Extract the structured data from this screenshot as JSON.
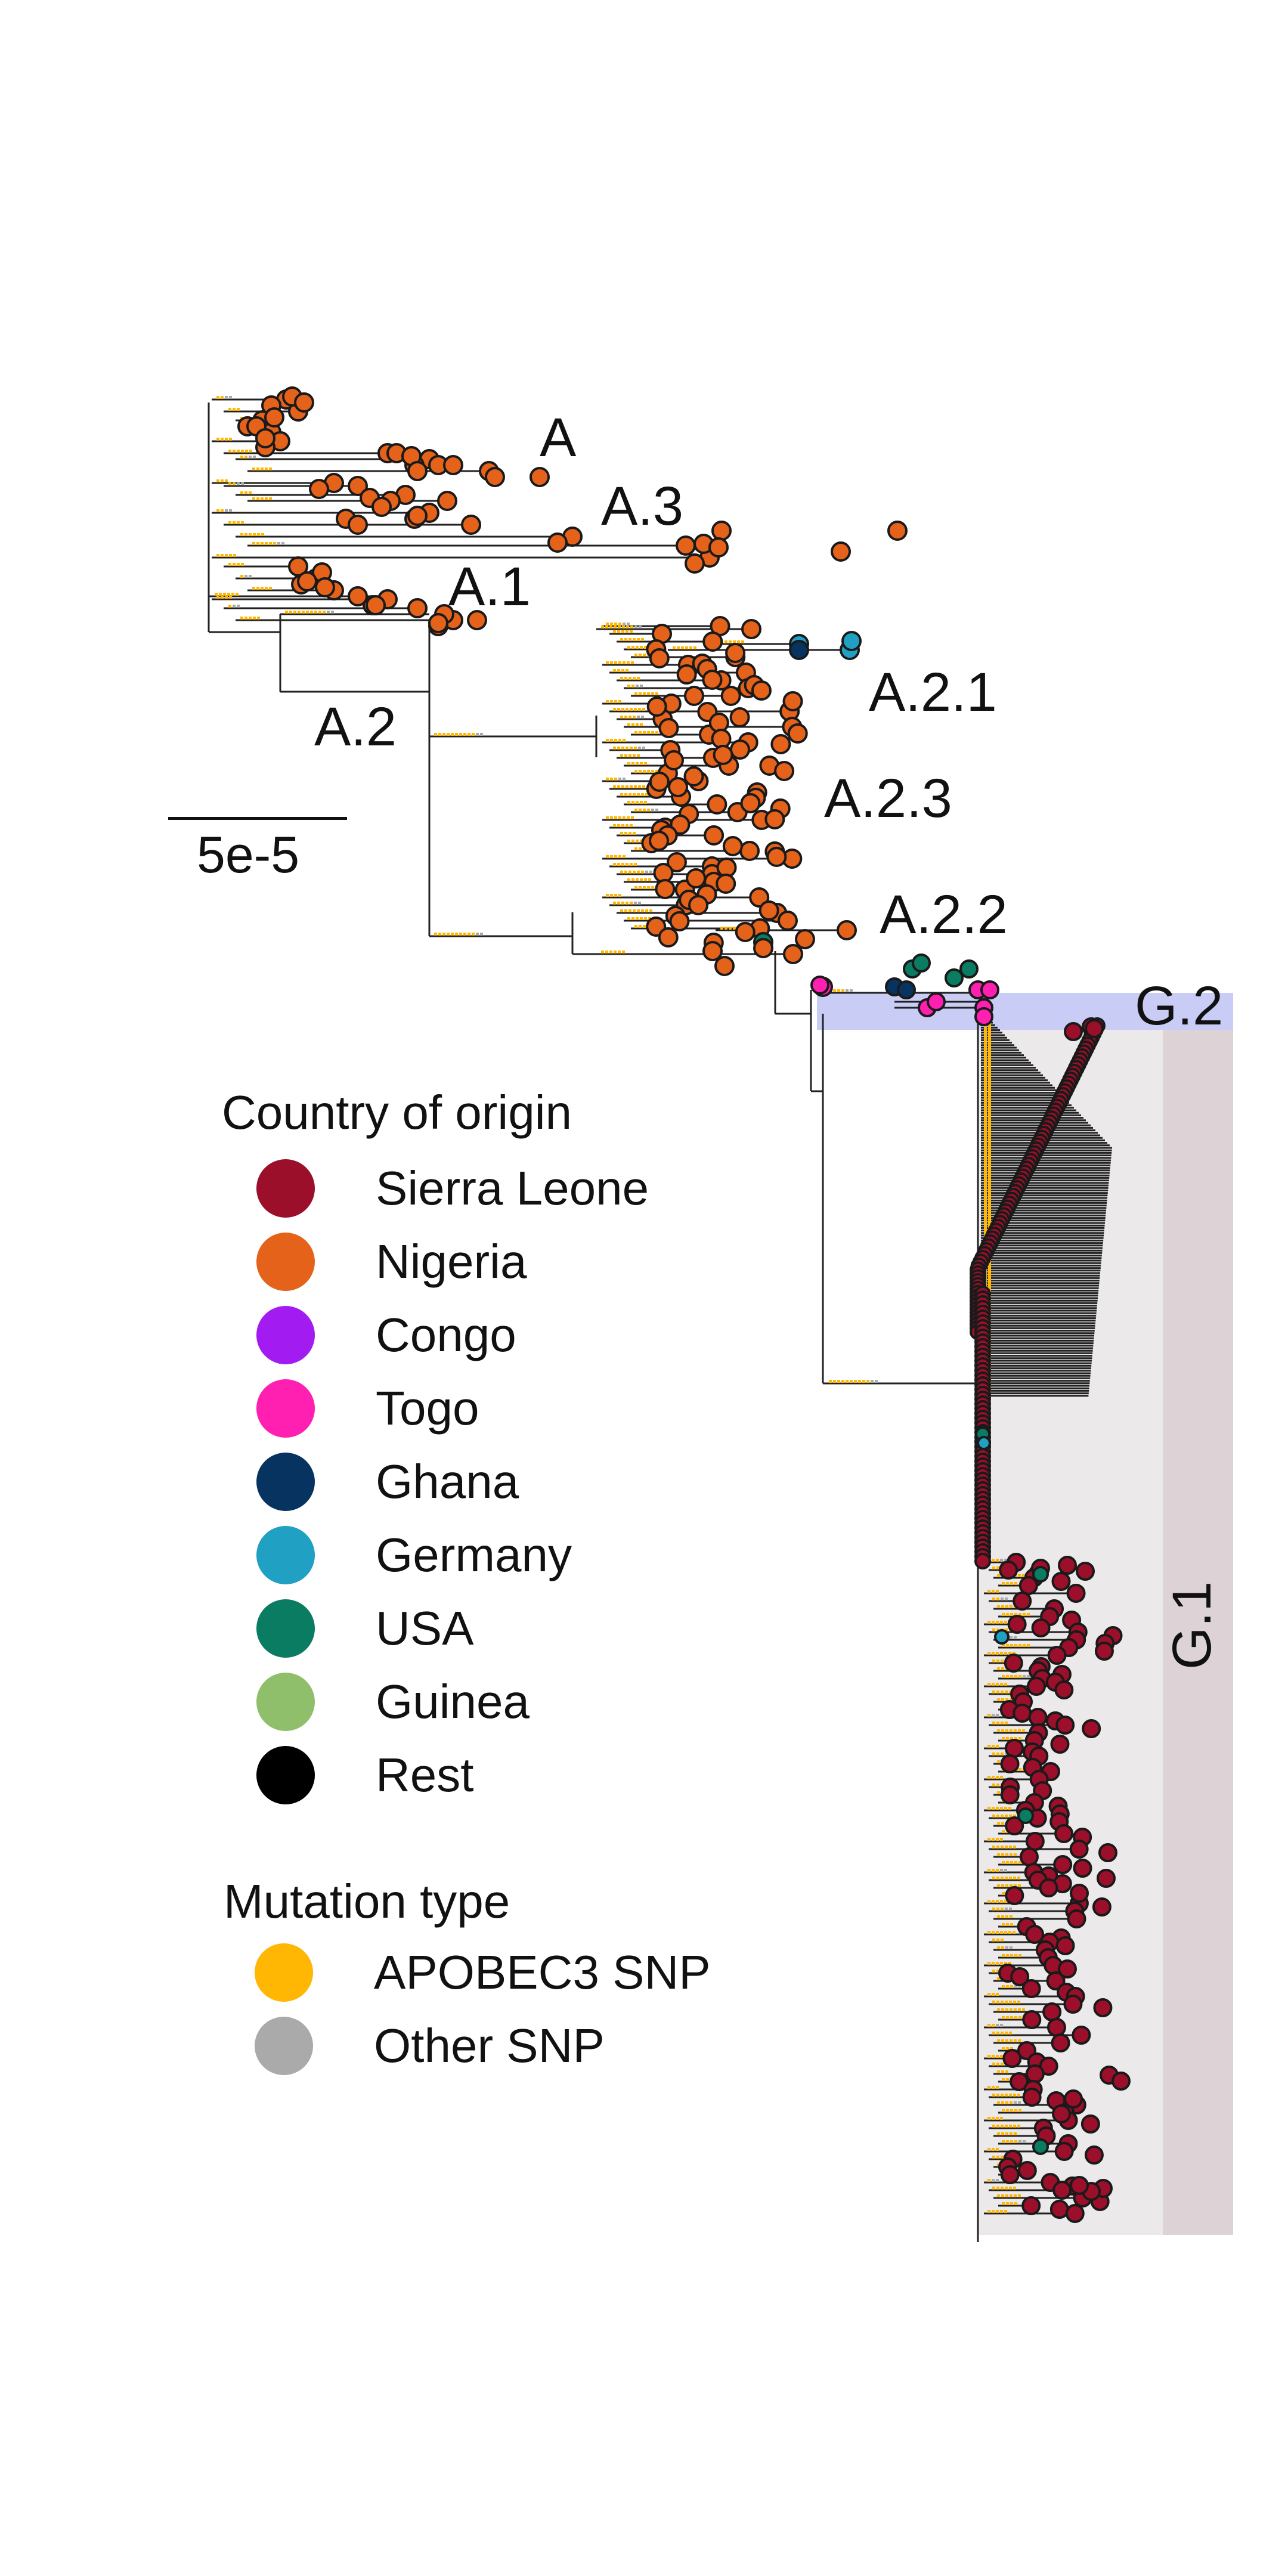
{
  "clade_labels": {
    "A": "A",
    "A3": "A.3",
    "A1": "A.1",
    "A2": "A.2",
    "A21": "A.2.1",
    "A23": "A.2.3",
    "A22": "A.2.2",
    "G2": "G.2",
    "G1": "G.1"
  },
  "scale_bar": {
    "label": "5e-5"
  },
  "legend_country": {
    "title": "Country of origin",
    "items": [
      {
        "label": "Sierra Leone",
        "color": "#9b0f2a"
      },
      {
        "label": "Nigeria",
        "color": "#e4621a"
      },
      {
        "label": "Congo",
        "color": "#a21cf2"
      },
      {
        "label": "Togo",
        "color": "#ff1fb0"
      },
      {
        "label": "Ghana",
        "color": "#06335f"
      },
      {
        "label": "Germany",
        "color": "#20a0c2"
      },
      {
        "label": "USA",
        "color": "#0a7c61"
      },
      {
        "label": "Guinea",
        "color": "#8fbf6a"
      },
      {
        "label": "Rest",
        "color": "#000000"
      }
    ]
  },
  "legend_mutation": {
    "title": "Mutation type",
    "items": [
      {
        "label": "APOBEC3 SNP",
        "color": "#ffb703"
      },
      {
        "label": "Other SNP",
        "color": "#aaaaaa"
      }
    ]
  },
  "colors": {
    "g2_band": "#c9cdf6",
    "g1_band_inner": "#ebe9ea",
    "g1_band_outer": "#ddd3d6",
    "branch": "#222222",
    "node_outline": "#1a1a1a"
  }
}
